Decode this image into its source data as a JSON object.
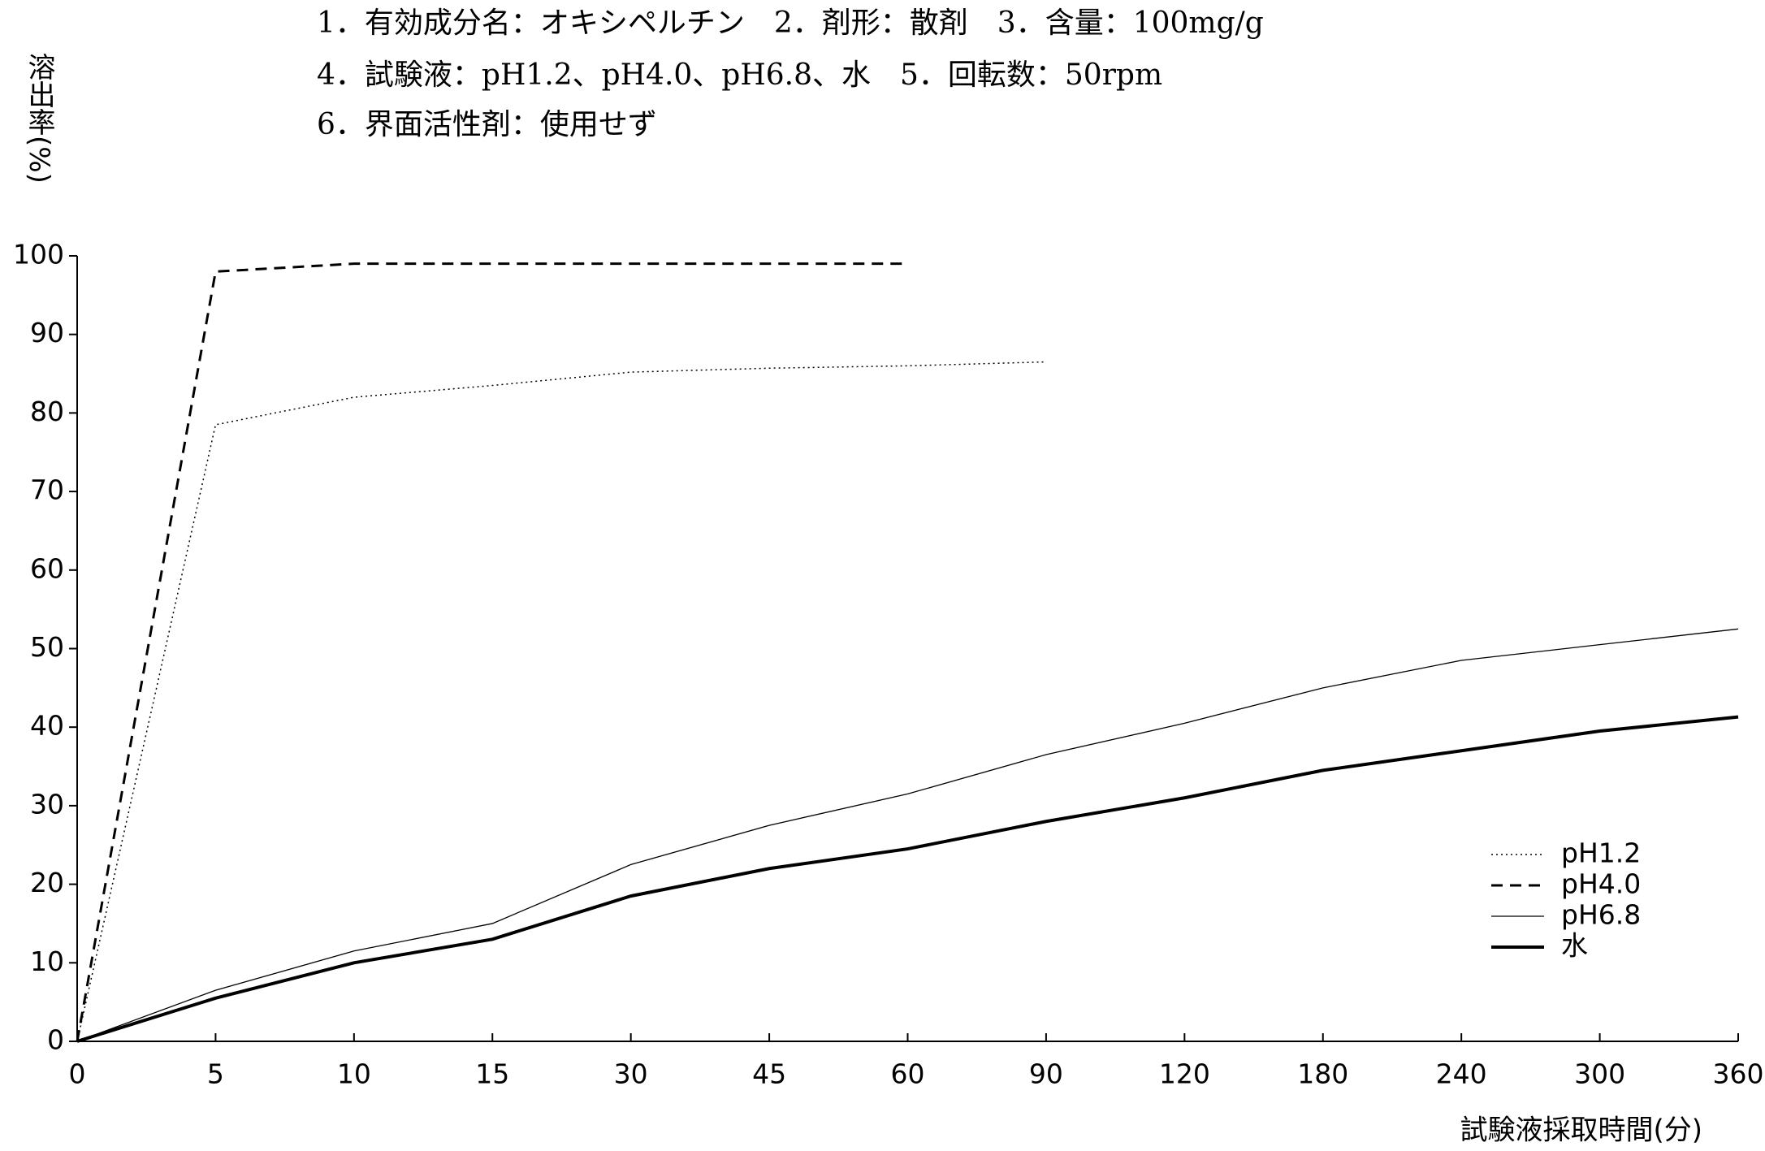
{
  "chart_data": {
    "type": "line",
    "header": [
      "1．有効成分名：オキシペルチン　2．剤形：散剤　3．含量：100mg/g",
      "4．試験液：pH1.2、pH4.0、pH6.8、水　5．回転数：50rpm",
      "6．界面活性剤：使用せず"
    ],
    "y_label": "溶出率(%)",
    "x_label": "試験液採取時間(分)",
    "categories": [
      "0",
      "5",
      "10",
      "15",
      "30",
      "45",
      "60",
      "90",
      "120",
      "180",
      "240",
      "300",
      "360"
    ],
    "series": [
      {
        "name": "pH1.2",
        "color": "#000000",
        "line_style": "dotted",
        "values": [
          0,
          78.5,
          82,
          83.5,
          85.2,
          85.7,
          86,
          86.5,
          null,
          null,
          null,
          null,
          null
        ]
      },
      {
        "name": "pH4.0",
        "color": "#000000",
        "line_style": "dashed",
        "values": [
          0,
          98,
          99,
          99,
          99,
          99,
          99,
          null,
          null,
          null,
          null,
          null,
          null
        ]
      },
      {
        "name": "pH6.8",
        "color": "#000000",
        "line_style": "thin",
        "values": [
          0,
          6.5,
          11.5,
          15,
          22.5,
          27.5,
          31.5,
          36.5,
          40.5,
          45,
          48.5,
          50.5,
          52.5
        ]
      },
      {
        "name": "水",
        "color": "#000000",
        "line_style": "thick",
        "values": [
          0,
          5.5,
          10,
          13,
          18.5,
          22,
          24.5,
          28,
          31,
          34.5,
          37,
          39.5,
          41.3
        ]
      }
    ],
    "ylim": [
      0,
      100
    ],
    "yticks": [
      0,
      10,
      20,
      30,
      40,
      50,
      60,
      70,
      80,
      90,
      100
    ],
    "legend": "lower right",
    "grid": false
  }
}
